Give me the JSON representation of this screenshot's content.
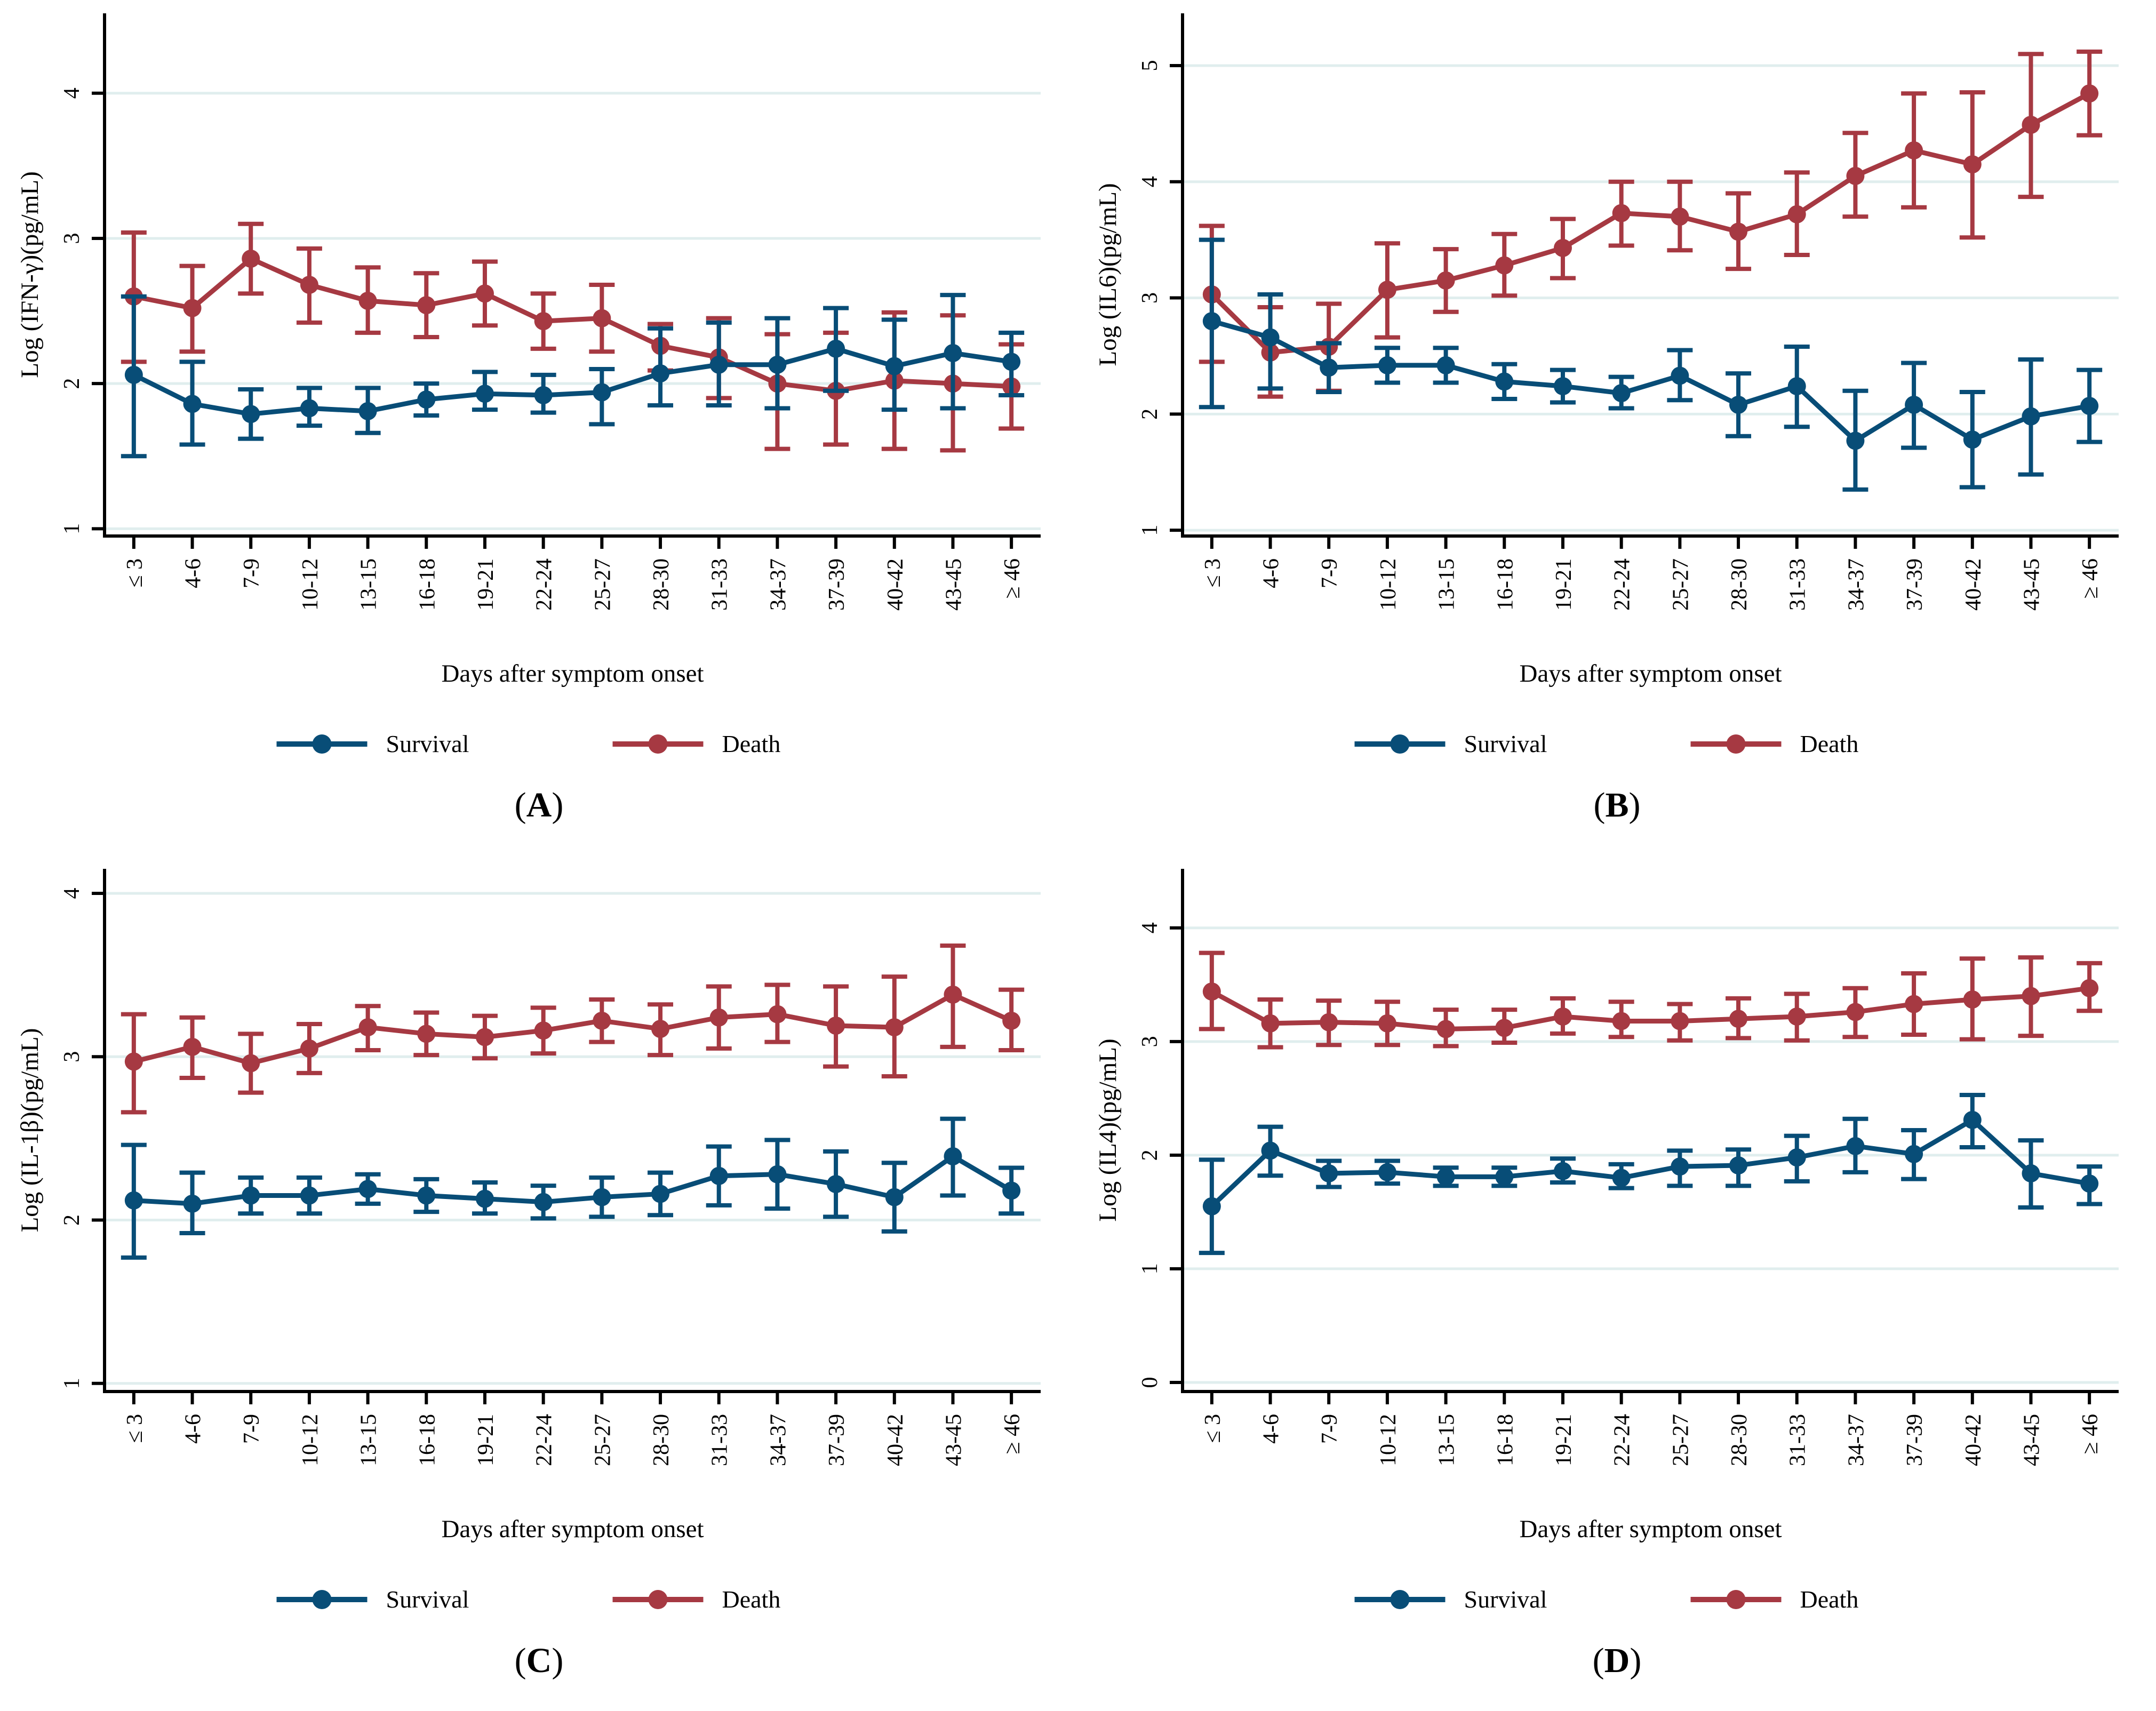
{
  "legend": {
    "survival_label": "Survival",
    "death_label": "Death"
  },
  "colors": {
    "survival": "#084d77",
    "death": "#a63942",
    "grid": "#e0eeee",
    "axis": "#000000"
  },
  "xlabel": "Days after symptom onset",
  "categories": [
    "≤ 3",
    "4-6",
    "7-9",
    "10-12",
    "13-15",
    "16-18",
    "19-21",
    "22-24",
    "25-27",
    "28-30",
    "31-33",
    "34-37",
    "37-39",
    "40-42",
    "43-45",
    "≥ 46"
  ],
  "chart_data": [
    {
      "type": "line",
      "panel": "A",
      "caption": {
        "pre": "(",
        "letter": "A",
        "post": ")"
      },
      "ylabel": "Log (IFN-γ)(pg/mL)",
      "xlabel": "Days after symptom onset",
      "yticks": [
        1,
        2,
        3,
        4
      ],
      "ylim": [
        0.95,
        4.55
      ],
      "grid": true,
      "legend_position": "bottom",
      "categories": [
        "≤ 3",
        "4-6",
        "7-9",
        "10-12",
        "13-15",
        "16-18",
        "19-21",
        "22-24",
        "25-27",
        "28-30",
        "31-33",
        "34-37",
        "37-39",
        "40-42",
        "43-45",
        "≥ 46"
      ],
      "series": [
        {
          "name": "Death",
          "values": [
            2.6,
            2.52,
            2.86,
            2.68,
            2.57,
            2.54,
            2.62,
            2.43,
            2.45,
            2.26,
            2.18,
            2.0,
            1.95,
            2.02,
            2.0,
            1.98
          ],
          "ci_low": [
            2.15,
            2.22,
            2.62,
            2.42,
            2.35,
            2.32,
            2.4,
            2.24,
            2.22,
            2.09,
            1.9,
            1.55,
            1.58,
            1.55,
            1.54,
            1.69
          ],
          "ci_high": [
            3.04,
            2.81,
            3.1,
            2.93,
            2.8,
            2.76,
            2.84,
            2.62,
            2.68,
            2.41,
            2.45,
            2.34,
            2.35,
            2.49,
            2.47,
            2.27
          ]
        },
        {
          "name": "Survival",
          "values": [
            2.06,
            1.86,
            1.79,
            1.83,
            1.81,
            1.89,
            1.93,
            1.92,
            1.94,
            2.07,
            2.13,
            2.13,
            2.24,
            2.12,
            2.21,
            2.15
          ],
          "ci_low": [
            1.5,
            1.58,
            1.62,
            1.71,
            1.66,
            1.78,
            1.82,
            1.8,
            1.72,
            1.85,
            1.85,
            1.83,
            1.95,
            1.82,
            1.83,
            1.92
          ],
          "ci_high": [
            2.6,
            2.15,
            1.96,
            1.97,
            1.97,
            2.0,
            2.08,
            2.06,
            2.1,
            2.38,
            2.42,
            2.45,
            2.52,
            2.44,
            2.61,
            2.35
          ]
        }
      ]
    },
    {
      "type": "line",
      "panel": "B",
      "caption": {
        "pre": "(",
        "letter": "B",
        "post": ")"
      },
      "ylabel": "Log (IL6)(pg/mL)",
      "xlabel": "Days after symptom onset",
      "yticks": [
        1,
        2,
        3,
        4,
        5
      ],
      "ylim": [
        0.95,
        5.45
      ],
      "grid": true,
      "legend_position": "bottom",
      "categories": [
        "≤ 3",
        "4-6",
        "7-9",
        "10-12",
        "13-15",
        "16-18",
        "19-21",
        "22-24",
        "25-27",
        "28-30",
        "31-33",
        "34-37",
        "37-39",
        "40-42",
        "43-45",
        "≥ 46"
      ],
      "series": [
        {
          "name": "Death",
          "values": [
            3.03,
            2.53,
            2.58,
            3.07,
            3.15,
            3.28,
            3.43,
            3.73,
            3.7,
            3.57,
            3.72,
            4.05,
            4.27,
            4.15,
            4.49,
            4.76
          ],
          "ci_low": [
            2.45,
            2.15,
            2.2,
            2.66,
            2.88,
            3.02,
            3.17,
            3.45,
            3.41,
            3.25,
            3.37,
            3.7,
            3.78,
            3.52,
            3.87,
            4.4
          ],
          "ci_high": [
            3.62,
            2.92,
            2.95,
            3.47,
            3.42,
            3.55,
            3.68,
            4.0,
            4.0,
            3.9,
            4.08,
            4.42,
            4.76,
            4.77,
            5.1,
            5.12
          ]
        },
        {
          "name": "Survival",
          "values": [
            2.8,
            2.66,
            2.4,
            2.42,
            2.42,
            2.28,
            2.24,
            2.18,
            2.33,
            2.08,
            2.24,
            1.77,
            2.08,
            1.78,
            1.98,
            2.07
          ],
          "ci_low": [
            2.06,
            2.22,
            2.19,
            2.27,
            2.27,
            2.13,
            2.1,
            2.05,
            2.12,
            1.81,
            1.89,
            1.35,
            1.71,
            1.37,
            1.48,
            1.76
          ],
          "ci_high": [
            3.5,
            3.03,
            2.61,
            2.57,
            2.57,
            2.43,
            2.38,
            2.32,
            2.55,
            2.35,
            2.58,
            2.2,
            2.44,
            2.19,
            2.47,
            2.38
          ]
        }
      ]
    },
    {
      "type": "line",
      "panel": "C",
      "caption": {
        "pre": "(",
        "letter": "C",
        "post": ")"
      },
      "ylabel": "Log (IL-1β)(pg/mL)",
      "xlabel": "Days after symptom onset",
      "yticks": [
        1,
        2,
        3,
        4
      ],
      "ylim": [
        0.95,
        4.15
      ],
      "grid": true,
      "legend_position": "bottom",
      "categories": [
        "≤ 3",
        "4-6",
        "7-9",
        "10-12",
        "13-15",
        "16-18",
        "19-21",
        "22-24",
        "25-27",
        "28-30",
        "31-33",
        "34-37",
        "37-39",
        "40-42",
        "43-45",
        "≥ 46"
      ],
      "series": [
        {
          "name": "Death",
          "values": [
            2.97,
            3.06,
            2.96,
            3.05,
            3.18,
            3.14,
            3.12,
            3.16,
            3.22,
            3.17,
            3.24,
            3.26,
            3.19,
            3.18,
            3.38,
            3.22
          ],
          "ci_low": [
            2.66,
            2.87,
            2.78,
            2.9,
            3.04,
            3.01,
            2.99,
            3.02,
            3.09,
            3.01,
            3.05,
            3.09,
            2.94,
            2.88,
            3.06,
            3.04
          ],
          "ci_high": [
            3.26,
            3.24,
            3.14,
            3.2,
            3.31,
            3.27,
            3.25,
            3.3,
            3.35,
            3.32,
            3.43,
            3.44,
            3.43,
            3.49,
            3.68,
            3.41
          ]
        },
        {
          "name": "Survival",
          "values": [
            2.12,
            2.1,
            2.15,
            2.15,
            2.19,
            2.15,
            2.13,
            2.11,
            2.14,
            2.16,
            2.27,
            2.28,
            2.22,
            2.14,
            2.39,
            2.18
          ],
          "ci_low": [
            1.77,
            1.92,
            2.04,
            2.04,
            2.1,
            2.05,
            2.04,
            2.01,
            2.02,
            2.03,
            2.09,
            2.07,
            2.02,
            1.93,
            2.15,
            2.04
          ],
          "ci_high": [
            2.46,
            2.29,
            2.26,
            2.26,
            2.28,
            2.25,
            2.23,
            2.21,
            2.26,
            2.29,
            2.45,
            2.49,
            2.42,
            2.35,
            2.62,
            2.32
          ]
        }
      ]
    },
    {
      "type": "line",
      "panel": "D",
      "caption": {
        "pre": "(",
        "letter": "D",
        "post": ")"
      },
      "ylabel": "Log (IL4)(pg/mL)",
      "xlabel": "Days after symptom onset",
      "yticks": [
        0,
        1,
        2,
        3,
        4
      ],
      "ylim": [
        -0.08,
        4.52
      ],
      "grid": true,
      "legend_position": "bottom",
      "categories": [
        "≤ 3",
        "4-6",
        "7-9",
        "10-12",
        "13-15",
        "16-18",
        "19-21",
        "22-24",
        "25-27",
        "28-30",
        "31-33",
        "34-37",
        "37-39",
        "40-42",
        "43-45",
        "≥ 46"
      ],
      "series": [
        {
          "name": "Death",
          "values": [
            3.44,
            3.16,
            3.17,
            3.16,
            3.11,
            3.12,
            3.22,
            3.18,
            3.18,
            3.2,
            3.22,
            3.26,
            3.33,
            3.37,
            3.4,
            3.47
          ],
          "ci_low": [
            3.11,
            2.95,
            2.97,
            2.97,
            2.96,
            2.99,
            3.07,
            3.04,
            3.01,
            3.03,
            3.01,
            3.04,
            3.06,
            3.02,
            3.05,
            3.27
          ],
          "ci_high": [
            3.78,
            3.37,
            3.36,
            3.35,
            3.28,
            3.28,
            3.38,
            3.35,
            3.33,
            3.38,
            3.42,
            3.47,
            3.6,
            3.73,
            3.74,
            3.69
          ]
        },
        {
          "name": "Survival",
          "values": [
            1.55,
            2.04,
            1.84,
            1.85,
            1.81,
            1.81,
            1.86,
            1.8,
            1.9,
            1.91,
            1.98,
            2.08,
            2.01,
            2.31,
            1.84,
            1.75
          ],
          "ci_low": [
            1.14,
            1.82,
            1.72,
            1.75,
            1.73,
            1.73,
            1.76,
            1.71,
            1.73,
            1.73,
            1.77,
            1.85,
            1.79,
            2.07,
            1.54,
            1.57
          ],
          "ci_high": [
            1.96,
            2.25,
            1.95,
            1.95,
            1.89,
            1.89,
            1.97,
            1.92,
            2.04,
            2.05,
            2.17,
            2.32,
            2.22,
            2.53,
            2.13,
            1.9
          ]
        }
      ]
    }
  ]
}
